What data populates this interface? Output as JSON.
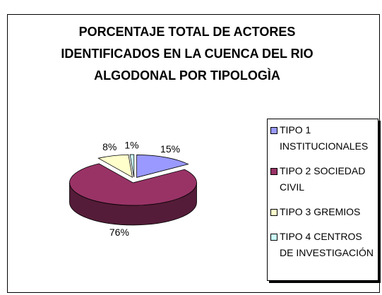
{
  "chart_data": {
    "type": "pie",
    "title": "PORCENTAJE TOTAL DE ACTORES IDENTIFICADOS EN LA CUENCA DEL RIO ALGODONAL POR TIPOLOGÌA",
    "categories": [
      "TIPO 1 INSTITUCIONALES",
      "TIPO 2 SOCIEDAD CIVIL",
      "TIPO 3 GREMIOS",
      "TIPO 4 CENTROS DE INVESTIGACIÓN"
    ],
    "values": [
      15,
      76,
      8,
      1
    ],
    "value_labels": [
      "15%",
      "76%",
      "8%",
      "1%"
    ],
    "colors": [
      "#9999ff",
      "#993366",
      "#ffffcc",
      "#ccffff"
    ],
    "legend": "right"
  }
}
